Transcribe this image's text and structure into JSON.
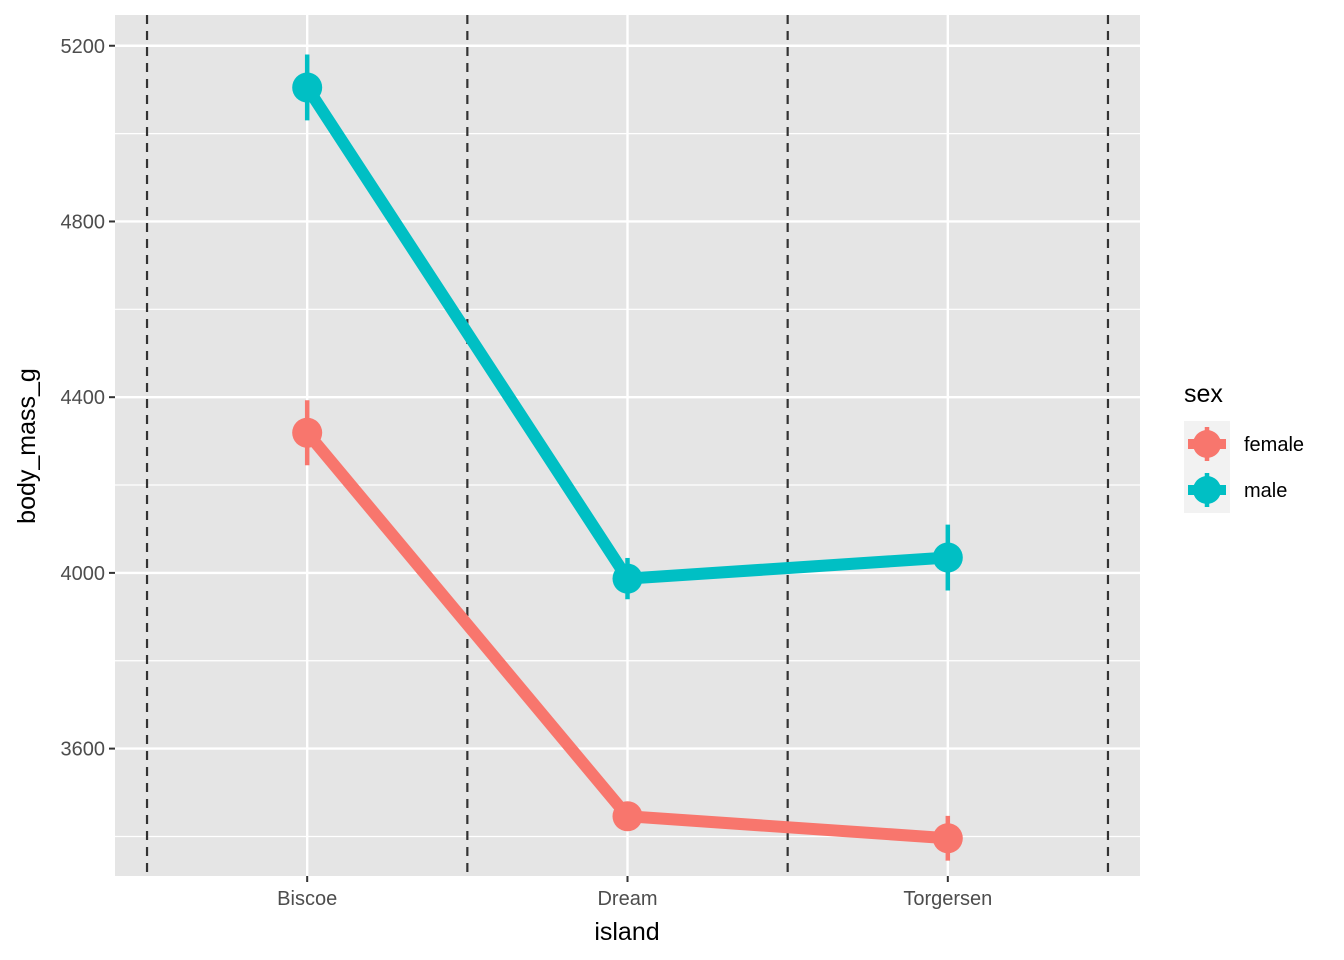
{
  "chart_data": {
    "type": "line",
    "title": "",
    "xlabel": "island",
    "ylabel": "body_mass_g",
    "categories": [
      "Biscoe",
      "Dream",
      "Torgersen"
    ],
    "y_ticks": [
      3600,
      4000,
      4400,
      4800,
      5200
    ],
    "ylim": [
      3310,
      5270
    ],
    "grid": true,
    "panel_background": "#e5e5e5",
    "separators": {
      "style": "dashed",
      "color": "#333333",
      "x_positions": [
        0.5,
        1.5,
        2.5,
        3.5
      ]
    },
    "legend": {
      "title": "sex",
      "position": "right"
    },
    "series": [
      {
        "name": "female",
        "color": "#f8766d",
        "values": [
          4319,
          3446,
          3396
        ],
        "error_low": [
          4245,
          3414,
          3345
        ],
        "error_high": [
          4393,
          3478,
          3447
        ]
      },
      {
        "name": "male",
        "color": "#00bfc4",
        "values": [
          5105,
          3987,
          4035
        ],
        "error_low": [
          5030,
          3940,
          3960
        ],
        "error_high": [
          5180,
          4034,
          4110
        ]
      }
    ]
  }
}
